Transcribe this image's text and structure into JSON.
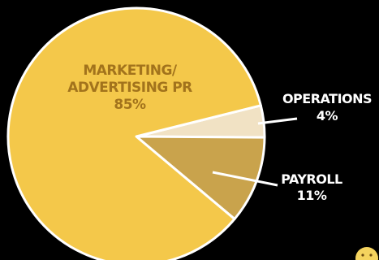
{
  "chart_data": {
    "type": "pie",
    "title": "",
    "slices": [
      {
        "label_lines": [
          "MARKETING/",
          "ADVERTISING PR"
        ],
        "pct_label": "85%",
        "value": 85,
        "color": "#F4C84A"
      },
      {
        "label_lines": [
          "OPERATIONS"
        ],
        "pct_label": "4%",
        "value": 4,
        "color": "#F1E2C4"
      },
      {
        "label_lines": [
          "PAYROLL"
        ],
        "pct_label": "11%",
        "value": 11,
        "color": "#C9A34C"
      }
    ],
    "colors": {
      "background": "#000000",
      "slice_border": "#FFFFFF",
      "outside_label_text": "#FFFFFF",
      "inside_label_text": "#A2731C"
    }
  }
}
